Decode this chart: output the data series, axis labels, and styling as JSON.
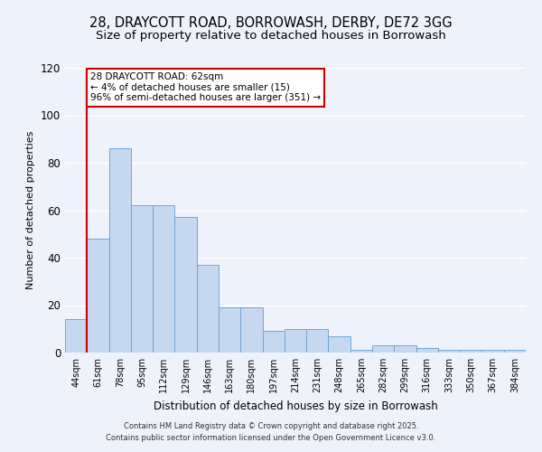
{
  "title": "28, DRAYCOTT ROAD, BORROWASH, DERBY, DE72 3GG",
  "subtitle": "Size of property relative to detached houses in Borrowash",
  "xlabel": "Distribution of detached houses by size in Borrowash",
  "ylabel": "Number of detached properties",
  "bar_labels": [
    "44sqm",
    "61sqm",
    "78sqm",
    "95sqm",
    "112sqm",
    "129sqm",
    "146sqm",
    "163sqm",
    "180sqm",
    "197sqm",
    "214sqm",
    "231sqm",
    "248sqm",
    "265sqm",
    "282sqm",
    "299sqm",
    "316sqm",
    "333sqm",
    "350sqm",
    "367sqm",
    "384sqm"
  ],
  "bar_heights": [
    14,
    48,
    86,
    62,
    62,
    57,
    37,
    19,
    19,
    9,
    10,
    10,
    7,
    1,
    3,
    3,
    2,
    1,
    1,
    1,
    1
  ],
  "bar_color": "#c5d8f0",
  "bar_edge_color": "#6fa8d6",
  "red_line_index": 1,
  "annotation_text": "28 DRAYCOTT ROAD: 62sqm\n← 4% of detached houses are smaller (15)\n96% of semi-detached houses are larger (351) →",
  "annotation_box_color": "#ffffff",
  "annotation_edge_color": "#cc0000",
  "ylim": [
    0,
    120
  ],
  "yticks": [
    0,
    20,
    40,
    60,
    80,
    100,
    120
  ],
  "footer_line1": "Contains HM Land Registry data © Crown copyright and database right 2025.",
  "footer_line2": "Contains public sector information licensed under the Open Government Licence v3.0.",
  "bg_color": "#eef2fb",
  "grid_color": "#ffffff",
  "title_fontsize": 10.5,
  "subtitle_fontsize": 9.5
}
